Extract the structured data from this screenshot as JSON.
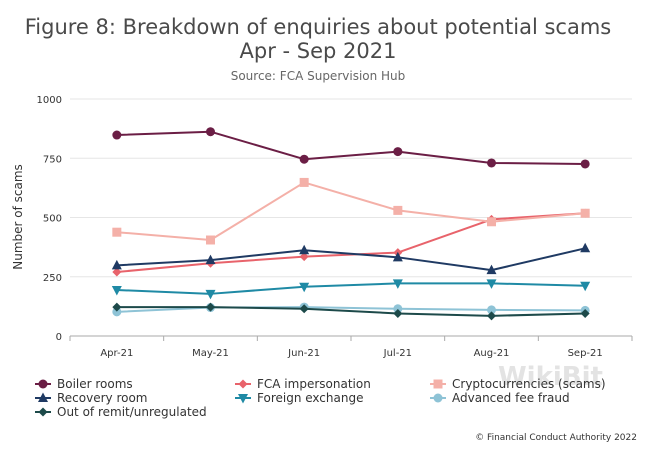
{
  "chart_data": {
    "type": "line",
    "title": "Figure 8: Breakdown of enquiries about potential scams",
    "title_line2": "Apr - Sep 2021",
    "subtitle": "Source: FCA Supervision Hub",
    "ylabel": "Number of scams",
    "xlabel": "",
    "categories": [
      "Apr-21",
      "May-21",
      "Jun-21",
      "Jul-21",
      "Aug-21",
      "Sep-21"
    ],
    "ylim": [
      0,
      1000
    ],
    "yticks": [
      "0",
      "250",
      "500",
      "750",
      "1000"
    ],
    "grid": true,
    "legend_position": "bottom",
    "series": [
      {
        "name": "Boiler rooms",
        "color": "#6b1e45",
        "marker": "circle",
        "values": [
          848,
          862,
          746,
          778,
          730,
          726
        ]
      },
      {
        "name": "FCA impersonation",
        "color": "#e8636b",
        "marker": "diamond",
        "values": [
          270,
          307,
          335,
          352,
          492,
          518
        ]
      },
      {
        "name": "Cryptocurrencies (scams)",
        "color": "#f4b0a8",
        "marker": "square",
        "values": [
          438,
          405,
          648,
          530,
          482,
          518
        ]
      },
      {
        "name": "Recovery room",
        "color": "#1f3a63",
        "marker": "triangle-up",
        "values": [
          298,
          320,
          362,
          332,
          278,
          370
        ]
      },
      {
        "name": "Foreign exchange",
        "color": "#1f8aa5",
        "marker": "triangle-down",
        "values": [
          194,
          178,
          208,
          222,
          222,
          212
        ]
      },
      {
        "name": "Advanced fee fraud",
        "color": "#8ec3d6",
        "marker": "circle",
        "values": [
          102,
          120,
          122,
          115,
          110,
          108
        ]
      },
      {
        "name": "Out of remit/unregulated",
        "color": "#1d4a4a",
        "marker": "diamond",
        "values": [
          122,
          122,
          115,
          95,
          85,
          95
        ]
      }
    ]
  },
  "copyright": "© Financial Conduct Authority 2022",
  "watermark": "WikiBit"
}
